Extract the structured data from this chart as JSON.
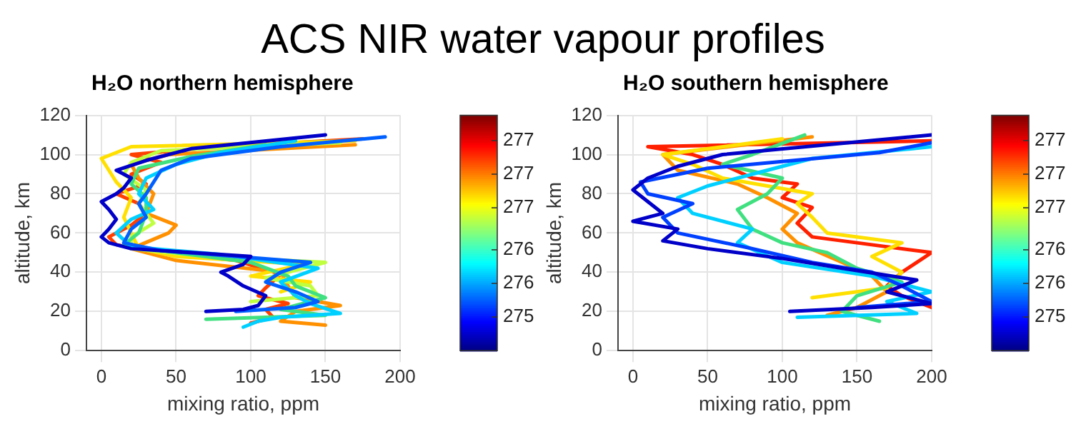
{
  "chart_data": [
    {
      "type": "line",
      "title": "ACS NIR water vapour profiles",
      "subtitle": "H₂O northern hemisphere",
      "xlabel": "mixing ratio, ppm",
      "ylabel": "altitude, km",
      "xlim": [
        -10,
        200
      ],
      "xticks": [
        0,
        50,
        100,
        150,
        200
      ],
      "ylim": [
        0,
        120
      ],
      "yticks": [
        0,
        20,
        40,
        60,
        80,
        100,
        120
      ],
      "grid": true,
      "legend": false,
      "clim": [
        274.8,
        277.6
      ],
      "cticks": [
        {
          "value": 275.2,
          "label": "275"
        },
        {
          "value": 275.6,
          "label": "276"
        },
        {
          "value": 276.0,
          "label": "276"
        },
        {
          "value": 276.5,
          "label": "277"
        },
        {
          "value": 276.9,
          "label": "277"
        },
        {
          "value": 277.3,
          "label": "277"
        }
      ],
      "series": [
        {
          "color": "#0000c8",
          "x": [
            70,
            95,
            105,
            110,
            95,
            85,
            80,
            95,
            100,
            60,
            20,
            5,
            0,
            5,
            10,
            5,
            0,
            10,
            15,
            20,
            10,
            30,
            60,
            150
          ],
          "values": [
            20,
            21,
            23,
            28,
            33,
            38,
            40,
            44,
            48,
            50,
            52,
            55,
            58,
            62,
            67,
            72,
            76,
            80,
            83,
            88,
            92,
            97,
            103,
            110
          ]
        },
        {
          "color": "#0060ff",
          "x": [
            90,
            130,
            145,
            130,
            110,
            120,
            140,
            90,
            40,
            15,
            20,
            30,
            25,
            30,
            35,
            40,
            60,
            120,
            190
          ],
          "values": [
            20,
            22,
            25,
            30,
            35,
            40,
            45,
            48,
            51,
            55,
            62,
            68,
            75,
            80,
            86,
            92,
            98,
            104,
            109
          ]
        },
        {
          "color": "#00d0ff",
          "x": [
            95,
            105,
            120,
            160,
            140,
            130,
            120,
            145,
            80,
            20,
            10,
            20,
            35,
            25,
            30,
            50,
            80,
            130
          ],
          "values": [
            12,
            15,
            17,
            19,
            24,
            28,
            35,
            42,
            49,
            53,
            60,
            67,
            72,
            80,
            88,
            95,
            101,
            107
          ]
        },
        {
          "color": "#40e080",
          "x": [
            70,
            150,
            120,
            150,
            130,
            125,
            100,
            50,
            15,
            25,
            30,
            30,
            20,
            25,
            60,
            110
          ],
          "values": [
            16,
            18,
            21,
            27,
            33,
            38,
            45,
            50,
            54,
            60,
            70,
            78,
            85,
            93,
            99,
            105
          ]
        },
        {
          "color": "#c0ff40",
          "x": [
            100,
            145,
            140,
            110,
            150,
            70,
            20,
            20,
            35,
            25,
            30,
            15,
            20,
            40,
            160
          ],
          "values": [
            25,
            28,
            33,
            37,
            45,
            48,
            52,
            58,
            65,
            75,
            82,
            90,
            96,
            102,
            106
          ]
        },
        {
          "color": "#ffe000",
          "x": [
            120,
            140,
            100,
            135,
            50,
            25,
            20,
            15,
            20,
            10,
            5,
            0,
            20,
            170
          ],
          "values": [
            30,
            35,
            38,
            44,
            48,
            52,
            60,
            68,
            78,
            86,
            92,
            98,
            104,
            107
          ]
        },
        {
          "color": "#ff9000",
          "x": [
            150,
            120,
            130,
            160,
            130,
            125,
            120,
            50,
            20,
            45,
            50,
            30,
            35,
            25,
            20,
            45,
            170
          ],
          "values": [
            13,
            15,
            20,
            23,
            27,
            33,
            40,
            46,
            52,
            60,
            64,
            70,
            80,
            88,
            95,
            100,
            105
          ]
        },
        {
          "color": "#ff4000",
          "x": [
            100,
            115,
            110,
            125,
            105,
            110,
            120,
            90,
            40,
            10,
            5,
            20,
            30,
            25,
            10,
            30,
            20,
            40,
            20,
            80,
            175
          ],
          "values": [
            14,
            17,
            21,
            24,
            28,
            32,
            39,
            46,
            50,
            54,
            58,
            64,
            70,
            75,
            80,
            85,
            90,
            96,
            100,
            104,
            108
          ]
        }
      ]
    },
    {
      "type": "line",
      "subtitle": "H₂O southern hemisphere",
      "xlabel": "mixing ratio, ppm",
      "ylabel": "altitude, km",
      "xlim": [
        -10,
        200
      ],
      "xticks": [
        0,
        50,
        100,
        150,
        200
      ],
      "ylim": [
        0,
        120
      ],
      "yticks": [
        0,
        20,
        40,
        60,
        80,
        100,
        120
      ],
      "grid": true,
      "legend": false,
      "clim": [
        274.8,
        277.6
      ],
      "cticks": [
        {
          "value": 275.2,
          "label": "275"
        },
        {
          "value": 275.6,
          "label": "276"
        },
        {
          "value": 276.0,
          "label": "276"
        },
        {
          "value": 276.5,
          "label": "277"
        },
        {
          "value": 276.9,
          "label": "277"
        },
        {
          "value": 277.3,
          "label": "277"
        }
      ],
      "series": [
        {
          "color": "#0000c8",
          "x": [
            105,
            160,
            200,
            170,
            190,
            140,
            100,
            50,
            20,
            30,
            0,
            20,
            10,
            0,
            10,
            30,
            60,
            200
          ],
          "values": [
            20,
            22,
            24,
            30,
            36,
            42,
            47,
            52,
            56,
            62,
            66,
            70,
            76,
            82,
            88,
            94,
            100,
            110
          ]
        },
        {
          "color": "#0040ff",
          "x": [
            150,
            200,
            180,
            160,
            120,
            80,
            30,
            20,
            40,
            10,
            5,
            50,
            165,
            200
          ],
          "values": [
            22,
            25,
            33,
            40,
            45,
            52,
            60,
            68,
            75,
            80,
            86,
            93,
            101,
            106
          ]
        },
        {
          "color": "#00d0ff",
          "x": [
            110,
            190,
            170,
            200,
            160,
            100,
            70,
            80,
            40,
            30,
            50,
            90,
            120,
            200
          ],
          "values": [
            17,
            19,
            25,
            30,
            38,
            45,
            55,
            62,
            70,
            78,
            84,
            92,
            98,
            104
          ]
        },
        {
          "color": "#40e080",
          "x": [
            165,
            140,
            150,
            180,
            150,
            130,
            100,
            80,
            70,
            90,
            100,
            60,
            80,
            115
          ],
          "values": [
            15,
            20,
            28,
            35,
            42,
            50,
            55,
            62,
            72,
            80,
            88,
            95,
            100,
            110
          ]
        },
        {
          "color": "#ffe000",
          "x": [
            120,
            170,
            180,
            160,
            180,
            130,
            120,
            110,
            120,
            60,
            40,
            20,
            100
          ],
          "values": [
            27,
            32,
            40,
            48,
            55,
            60,
            68,
            75,
            80,
            88,
            95,
            100,
            108
          ]
        },
        {
          "color": "#ff9000",
          "x": [
            130,
            150,
            170,
            160,
            140,
            110,
            100,
            110,
            90,
            70,
            30,
            20,
            120
          ],
          "values": [
            18,
            22,
            30,
            38,
            45,
            55,
            62,
            70,
            78,
            85,
            92,
            100,
            109
          ]
        },
        {
          "color": "#ff2000",
          "x": [
            200,
            180,
            170,
            180,
            190,
            200,
            150,
            120,
            110,
            120,
            100,
            110,
            80,
            60,
            40,
            10,
            200
          ],
          "values": [
            22,
            28,
            33,
            40,
            45,
            50,
            55,
            58,
            65,
            73,
            78,
            85,
            88,
            95,
            100,
            104,
            107
          ]
        }
      ]
    }
  ]
}
